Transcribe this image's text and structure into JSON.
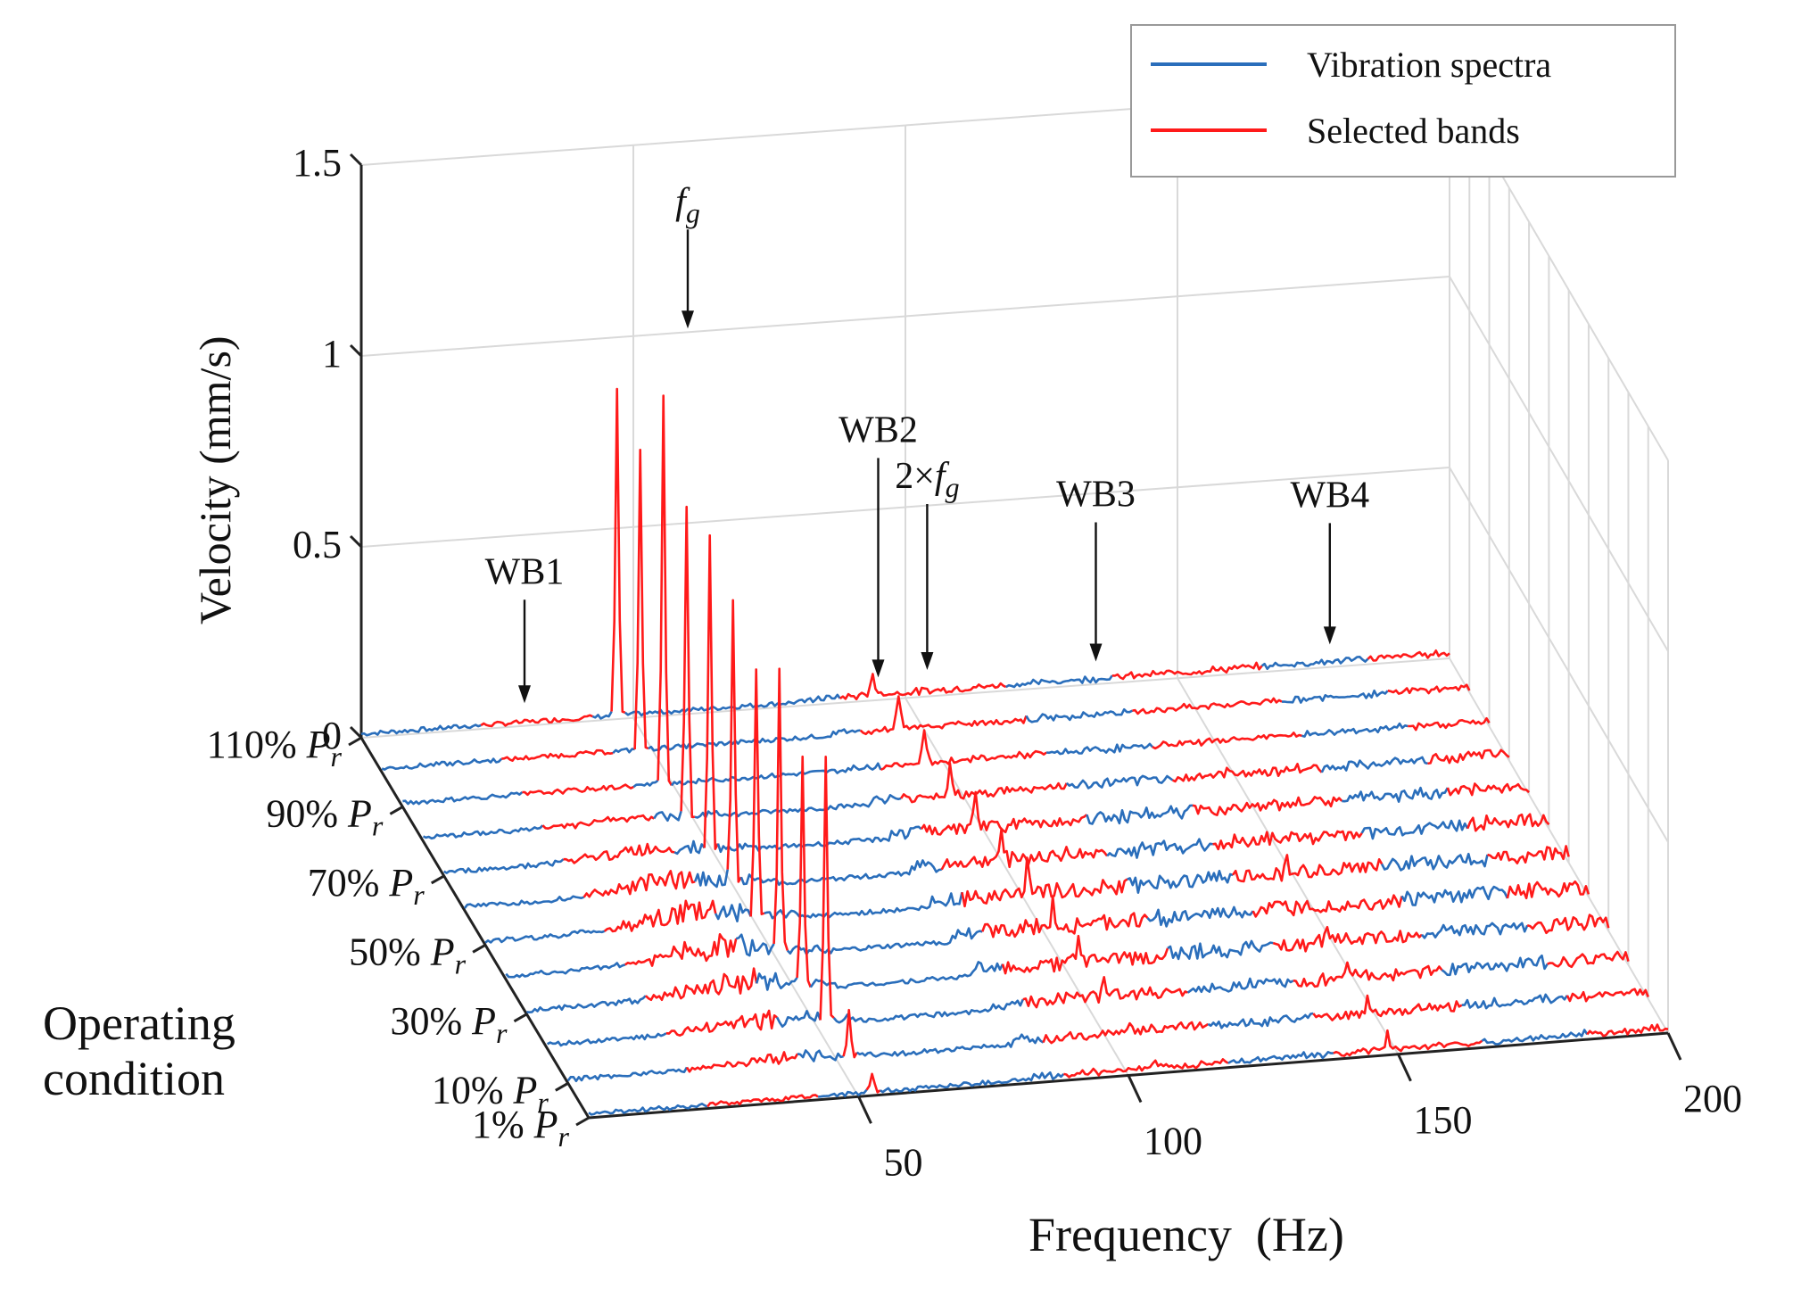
{
  "chart_data": {
    "type": "line",
    "title": "",
    "xlabel": "Frequency  (Hz)",
    "ylabel": "Velocity (mm/s)",
    "zlabel": "Operating condition",
    "xlim": [
      0,
      200
    ],
    "ylim": [
      0,
      1.5
    ],
    "xticks": [
      "50",
      "100",
      "150",
      "200"
    ],
    "yticks": [
      "0",
      "0.5",
      "1",
      "1.5"
    ],
    "conditions": [
      "1%",
      "10%",
      "20%",
      "30%",
      "40%",
      "50%",
      "60%",
      "70%",
      "80%",
      "90%",
      "100%",
      "110%"
    ],
    "condition_labels": [
      {
        "base": "1% ",
        "var": "P",
        "sub": "r"
      },
      {
        "base": "10% ",
        "var": "P",
        "sub": "r"
      },
      {
        "base": "30% ",
        "var": "P",
        "sub": "r"
      },
      {
        "base": "50% ",
        "var": "P",
        "sub": "r"
      },
      {
        "base": "70% ",
        "var": "P",
        "sub": "r"
      },
      {
        "base": "90% ",
        "var": "P",
        "sub": "r"
      },
      {
        "base": "110% ",
        "var": "P",
        "sub": "r"
      }
    ],
    "series": [
      {
        "name": "Vibration spectra",
        "color": "#2a6ebb"
      },
      {
        "name": "Selected bands",
        "color": "#ff1a1a"
      }
    ],
    "selected_bands_hz": [
      [
        22,
        42
      ],
      [
        88,
        118
      ],
      [
        138,
        165
      ],
      [
        185,
        200
      ]
    ],
    "fg_hz": [
      52.5,
      52.0,
      51.5,
      51.0,
      50.5,
      50.0,
      49.5,
      49.0,
      48.5,
      48.0,
      47.5,
      47.0
    ],
    "fg_peak_mm_s": [
      0.05,
      0.12,
      0.7,
      0.58,
      0.72,
      0.62,
      0.72,
      0.82,
      0.82,
      1.02,
      0.78,
      0.85
    ],
    "harmonic_2fg_peak_mm_s": [
      0.02,
      0.03,
      0.04,
      0.05,
      0.06,
      0.07,
      0.07,
      0.08,
      0.08,
      0.09,
      0.09,
      0.06
    ],
    "annotations": [
      {
        "id": "wb1",
        "text": "WB1"
      },
      {
        "id": "fg",
        "text": "f",
        "sub": "g"
      },
      {
        "id": "wb2",
        "text": "WB2"
      },
      {
        "id": "h2",
        "text": "2×f",
        "sub": "g"
      },
      {
        "id": "wb3",
        "text": "WB3"
      },
      {
        "id": "wb4",
        "text": "WB4"
      }
    ],
    "legend": {
      "position": "top-right",
      "entries": [
        "Vibration spectra",
        "Selected bands"
      ]
    },
    "grid": true
  }
}
